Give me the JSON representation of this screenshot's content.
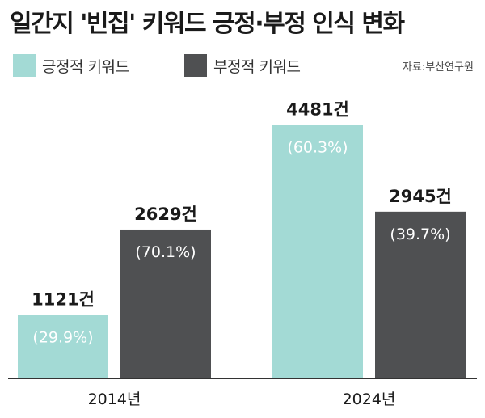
{
  "title": "일간지 '빈집' 키워드 긍정·부정 인식 변화",
  "source": "자료:부산연구원",
  "colors": {
    "positive": "#a3dad5",
    "negative": "#4f5052",
    "axis": "#333333"
  },
  "chart_data": {
    "type": "bar",
    "title": "일간지 '빈집' 키워드 긍정·부정 인식 변화",
    "categories": [
      "2014년",
      "2024년"
    ],
    "series": [
      {
        "name": "긍정적 키워드",
        "values": [
          1121,
          4481
        ],
        "labels": [
          "1121건",
          "4481건"
        ],
        "percents": [
          "(29.9%)",
          "(60.3%)"
        ]
      },
      {
        "name": "부정적 키워드",
        "values": [
          2629,
          2945
        ],
        "labels": [
          "2629건",
          "2945건"
        ],
        "percents": [
          "(70.1%)",
          "(39.7%)"
        ]
      }
    ],
    "ylim": [
      0,
      5000
    ],
    "grid": false,
    "legend_position": "top-left"
  }
}
